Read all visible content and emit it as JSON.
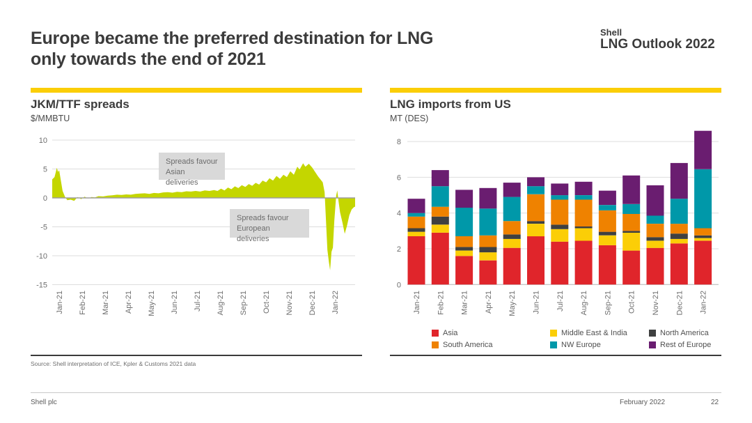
{
  "header": {
    "title_line1": "Europe became the preferred destination for LNG",
    "title_line2": "only towards the end of 2021",
    "brand_line1": "Shell",
    "brand_line2": "LNG Outlook 2022"
  },
  "left_chart": {
    "title": "JKM/TTF spreads",
    "unit": "$/MMBTU",
    "annotation1": {
      "line1": "Spreads favour",
      "line2": "Asian deliveries"
    },
    "annotation2": {
      "line1": "Spreads favour",
      "line2": "European deliveries"
    }
  },
  "right_chart": {
    "title": "LNG imports from US",
    "unit": "MT (DES)"
  },
  "footer": {
    "source": "Source: Shell interpretation of ICE, Kpler & Customs 2021 data",
    "company": "Shell plc",
    "date": "February 2022",
    "page": "22"
  },
  "colors": {
    "accent_yellow": "#fbce07",
    "area_green": "#c4d600",
    "zero_line": "#9e9e9e",
    "gridline": "#dddddd",
    "baseline": "#b3b3b3",
    "divider_dark": "#3a3a3a",
    "text_dark": "#3b3b3b",
    "text_gray": "#6e6e6e",
    "annotation_bg": "#d9d9d9"
  },
  "chart_data": [
    {
      "type": "area",
      "title": "JKM/TTF spreads",
      "ylabel": "$/MMBTU",
      "series_name": "JKM-TTF spread",
      "x_unit": "months since start of Jan-21 (fractional, daily data)",
      "x_tick_labels": [
        "Jan-21",
        "Feb-21",
        "Mar-21",
        "Apr-21",
        "May-21",
        "Jun-21",
        "Jul-21",
        "Aug-21",
        "Sep-21",
        "Oct-21",
        "Nov-21",
        "Dec-21",
        "Jan-22"
      ],
      "y_ticks": [
        10,
        5,
        0,
        -5,
        -10,
        -15
      ],
      "ylim": [
        -15,
        10
      ],
      "grid": true,
      "annotations": [
        "Spreads favour Asian deliveries",
        "Spreads favour European deliveries"
      ],
      "points": [
        [
          0,
          3.2
        ],
        [
          0.1,
          3.6
        ],
        [
          0.15,
          4.4
        ],
        [
          0.2,
          5.2
        ],
        [
          0.25,
          4.5
        ],
        [
          0.3,
          4.8
        ],
        [
          0.35,
          3.6
        ],
        [
          0.45,
          1.2
        ],
        [
          0.55,
          0.2
        ],
        [
          0.65,
          -0.4
        ],
        [
          0.8,
          -0.3
        ],
        [
          0.95,
          -0.5
        ],
        [
          1.1,
          0.15
        ],
        [
          1.25,
          -0.2
        ],
        [
          1.4,
          0.2
        ],
        [
          1.55,
          -0.1
        ],
        [
          1.7,
          0.15
        ],
        [
          1.85,
          0.1
        ],
        [
          2.0,
          0.3
        ],
        [
          2.2,
          0.25
        ],
        [
          2.4,
          0.4
        ],
        [
          2.6,
          0.45
        ],
        [
          2.8,
          0.55
        ],
        [
          3.0,
          0.5
        ],
        [
          3.2,
          0.6
        ],
        [
          3.4,
          0.55
        ],
        [
          3.6,
          0.7
        ],
        [
          3.8,
          0.75
        ],
        [
          4.0,
          0.8
        ],
        [
          4.2,
          0.7
        ],
        [
          4.4,
          0.85
        ],
        [
          4.6,
          0.8
        ],
        [
          4.8,
          0.95
        ],
        [
          5.0,
          1.0
        ],
        [
          5.2,
          0.9
        ],
        [
          5.4,
          1.05
        ],
        [
          5.6,
          1.0
        ],
        [
          5.8,
          1.15
        ],
        [
          6.0,
          1.1
        ],
        [
          6.2,
          1.2
        ],
        [
          6.4,
          1.1
        ],
        [
          6.6,
          1.3
        ],
        [
          6.8,
          1.2
        ],
        [
          7.0,
          1.35
        ],
        [
          7.15,
          1.2
        ],
        [
          7.3,
          1.6
        ],
        [
          7.45,
          1.3
        ],
        [
          7.6,
          1.8
        ],
        [
          7.75,
          1.5
        ],
        [
          7.9,
          2.0
        ],
        [
          8.05,
          1.7
        ],
        [
          8.2,
          2.2
        ],
        [
          8.35,
          1.9
        ],
        [
          8.5,
          2.4
        ],
        [
          8.65,
          2.1
        ],
        [
          8.8,
          2.6
        ],
        [
          8.95,
          2.3
        ],
        [
          9.1,
          3.0
        ],
        [
          9.25,
          2.7
        ],
        [
          9.4,
          3.4
        ],
        [
          9.55,
          3.0
        ],
        [
          9.7,
          3.8
        ],
        [
          9.85,
          3.3
        ],
        [
          10.0,
          4.0
        ],
        [
          10.15,
          3.6
        ],
        [
          10.3,
          4.6
        ],
        [
          10.45,
          4.0
        ],
        [
          10.6,
          5.4
        ],
        [
          10.7,
          4.9
        ],
        [
          10.85,
          6.0
        ],
        [
          10.95,
          5.4
        ],
        [
          11.1,
          5.9
        ],
        [
          11.25,
          5.2
        ],
        [
          11.35,
          4.6
        ],
        [
          11.5,
          3.7
        ],
        [
          11.6,
          3.2
        ],
        [
          11.7,
          2.7
        ],
        [
          11.78,
          1.0
        ],
        [
          11.84,
          -4.0
        ],
        [
          11.9,
          -9.0
        ],
        [
          11.97,
          -11.2
        ],
        [
          12.02,
          -12.5
        ],
        [
          12.08,
          -9.3
        ],
        [
          12.14,
          -8.6
        ],
        [
          12.2,
          -4.0
        ],
        [
          12.28,
          0.4
        ],
        [
          12.33,
          1.3
        ],
        [
          12.38,
          -0.5
        ],
        [
          12.45,
          -2.5
        ],
        [
          12.55,
          -4.2
        ],
        [
          12.65,
          -6.2
        ],
        [
          12.75,
          -4.8
        ],
        [
          12.85,
          -3.0
        ],
        [
          12.95,
          -2.0
        ],
        [
          13.05,
          -1.6
        ],
        [
          13.1,
          -1.5
        ]
      ]
    },
    {
      "type": "stacked_bar",
      "title": "LNG imports from US",
      "ylabel": "MT (DES)",
      "categories": [
        "Jan-21",
        "Feb-21",
        "Mar-21",
        "Apr-21",
        "May-21",
        "Jun-21",
        "Jul-21",
        "Aug-21",
        "Sep-21",
        "Oct-21",
        "Nov-21",
        "Dec-21",
        "Jan-22"
      ],
      "y_ticks": [
        0,
        2,
        4,
        6,
        8
      ],
      "ylim": [
        0,
        8.7
      ],
      "grid": true,
      "legend_position": "bottom",
      "series": [
        {
          "name": "Asia",
          "color": "#e0252b",
          "values": [
            2.7,
            2.9,
            1.6,
            1.35,
            2.05,
            2.7,
            2.4,
            2.45,
            2.2,
            1.9,
            2.05,
            2.3,
            2.45
          ]
        },
        {
          "name": "Middle East & India",
          "color": "#fbce07",
          "values": [
            0.25,
            0.45,
            0.3,
            0.45,
            0.5,
            0.7,
            0.7,
            0.7,
            0.55,
            1.0,
            0.4,
            0.25,
            0.15
          ]
        },
        {
          "name": "North America",
          "color": "#3f4040",
          "values": [
            0.2,
            0.45,
            0.2,
            0.3,
            0.25,
            0.15,
            0.25,
            0.1,
            0.2,
            0.1,
            0.2,
            0.3,
            0.15
          ]
        },
        {
          "name": "South America",
          "color": "#ef8200",
          "values": [
            0.65,
            0.55,
            0.6,
            0.65,
            0.75,
            1.5,
            1.4,
            1.5,
            1.2,
            0.95,
            0.75,
            0.55,
            0.4
          ]
        },
        {
          "name": "NW Europe",
          "color": "#0098a9",
          "values": [
            0.2,
            1.15,
            1.6,
            1.5,
            1.35,
            0.45,
            0.25,
            0.25,
            0.3,
            0.55,
            0.45,
            1.4,
            3.3
          ]
        },
        {
          "name": "Rest of Europe",
          "color": "#6a1d70",
          "values": [
            0.8,
            0.9,
            1.0,
            1.15,
            0.8,
            0.5,
            0.65,
            0.75,
            0.8,
            1.6,
            1.7,
            2.0,
            2.15
          ]
        }
      ],
      "legend_display_order": [
        "Asia",
        "Middle East & India",
        "North America",
        "South America",
        "NW Europe",
        "Rest of Europe"
      ]
    }
  ]
}
